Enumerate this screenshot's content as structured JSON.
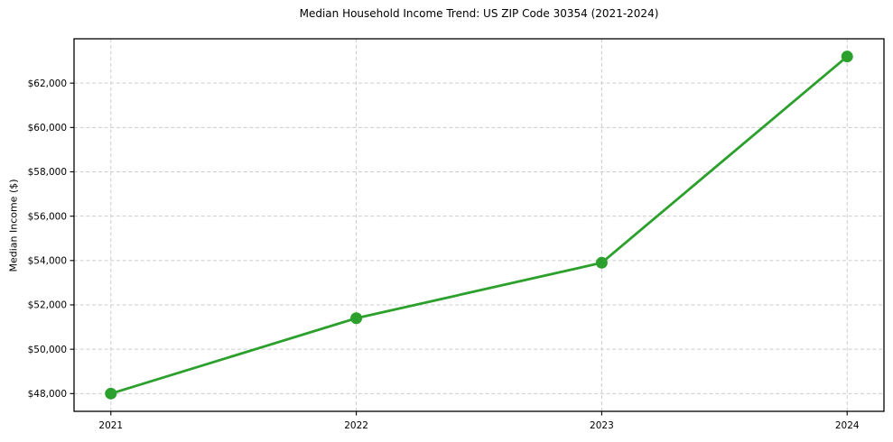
{
  "figure": {
    "background": "#ffffff"
  },
  "chart_data": {
    "type": "line",
    "title": "Median Household Income Trend: US ZIP Code 30354 (2021-2024)",
    "xlabel": "",
    "ylabel": "Median Income ($)",
    "x": [
      2021,
      2022,
      2023,
      2024
    ],
    "values": [
      48000,
      51400,
      53900,
      63200
    ],
    "xtick_labels": [
      "2021",
      "2022",
      "2023",
      "2024"
    ],
    "yticks": [
      48000,
      50000,
      52000,
      54000,
      56000,
      58000,
      60000,
      62000
    ],
    "ytick_labels": [
      "$48,000",
      "$50,000",
      "$52,000",
      "$54,000",
      "$56,000",
      "$58,000",
      "$60,000",
      "$62,000"
    ],
    "xlim": [
      2020.85,
      2024.15
    ],
    "ylim": [
      47200,
      64000
    ],
    "grid": "both",
    "grid_style": "dashed",
    "legend": "none",
    "marker": "circle",
    "line_color": "#2ca02c",
    "grid_color": "#cccccc",
    "spine_color": "#000000",
    "text_color": "#000000"
  }
}
